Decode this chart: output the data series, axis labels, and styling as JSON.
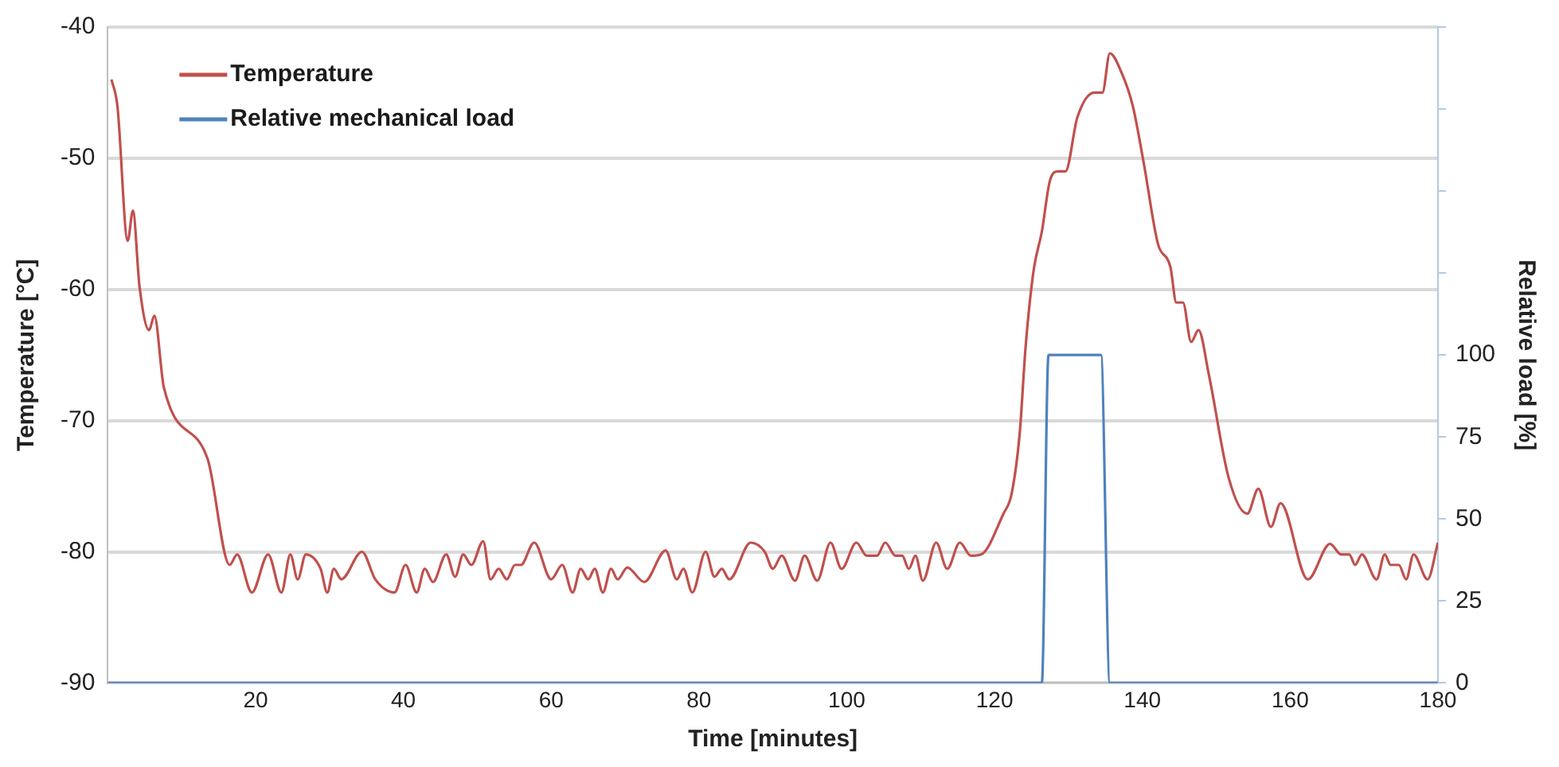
{
  "chart_data": {
    "type": "line",
    "xlabel": "Time [minutes]",
    "ylabel": "Temperature [°C]",
    "y2label": "Relative load [%]",
    "xlim": [
      0,
      180
    ],
    "xticks": [
      20,
      40,
      60,
      80,
      100,
      120,
      140,
      160,
      180
    ],
    "ylim": [
      -90,
      -40
    ],
    "yticks": [
      -90,
      -80,
      -70,
      -60,
      -50,
      -40
    ],
    "y2lim": [
      0,
      200
    ],
    "y2ticks": [
      0,
      25,
      50,
      75,
      100,
      {
        "value": 125,
        "label": null
      },
      {
        "value": 150,
        "label": null
      },
      {
        "value": 175,
        "label": null
      },
      {
        "value": 200,
        "label": null
      }
    ],
    "grid": "y",
    "legend": "top left",
    "line_style": "solid",
    "marker": "none",
    "series": [
      {
        "name": "Temperature",
        "color": "#c0504d",
        "x": [
          0.5,
          1.3,
          2.7,
          3.4,
          4.3,
          5.6,
          6.3,
          7.6,
          13.5,
          16.5,
          17.5,
          19.5,
          21.7,
          23.5,
          24.7,
          25.7,
          26.8,
          28.8,
          29.7,
          30.6,
          31.6,
          34.4,
          36.2,
          38.8,
          40.3,
          41.8,
          42.9,
          44,
          45.8,
          47,
          48.1,
          49.2,
          50.8,
          51.8,
          52.9,
          54,
          55.1,
          55.9,
          57.7,
          60,
          61.5,
          62.9,
          64,
          65,
          65.9,
          67,
          68.1,
          69,
          70.3,
          72.6,
          75.5,
          77,
          77.9,
          79.1,
          80.9,
          82.1,
          83.1,
          84.1,
          87,
          88.9,
          90,
          91.2,
          93,
          94.3,
          96,
          97.8,
          99.3,
          101.3,
          102.7,
          104.1,
          105.2,
          106.6,
          107.5,
          108.4,
          109.3,
          110.3,
          112.1,
          113.6,
          115.3,
          116.8,
          118.2,
          121.2,
          122.3,
          123.4,
          124.2,
          125.3,
          126.4,
          127.5,
          128.6,
          129.6,
          131.2,
          133.5,
          134.6,
          135.6,
          137.2,
          138.7,
          140.2,
          142.1,
          143.8,
          144.6,
          145.5,
          146.6,
          147.6,
          149,
          151.7,
          154.2,
          155.7,
          157.4,
          158.7,
          162.4,
          165.4,
          166.9,
          168,
          168.8,
          169.7,
          171.7,
          172.8,
          173.6,
          174.7,
          175.7,
          176.7,
          178.6,
          180
        ],
        "values": [
          -44,
          -46,
          -56.3,
          -54,
          -59.8,
          -63.1,
          -62,
          -67.5,
          -72.9,
          -81,
          -80.2,
          -83.1,
          -80.2,
          -83.1,
          -80.2,
          -82.1,
          -80.2,
          -81.3,
          -83.1,
          -81.3,
          -82.1,
          -80,
          -82.1,
          -83.1,
          -81,
          -83.1,
          -81.3,
          -82.3,
          -80.2,
          -81.9,
          -80.2,
          -81,
          -79.2,
          -82.1,
          -81.3,
          -82.1,
          -81,
          -81,
          -79.3,
          -82.1,
          -81,
          -83.1,
          -81.3,
          -82.1,
          -81.3,
          -83.1,
          -81.3,
          -82.1,
          -81.2,
          -82.3,
          -79.9,
          -82.1,
          -81.3,
          -83.1,
          -80,
          -81.9,
          -81.3,
          -82.1,
          -79.3,
          -80,
          -81.3,
          -80.3,
          -82.2,
          -80.3,
          -82.2,
          -79.3,
          -81.3,
          -79.3,
          -80.3,
          -80.3,
          -79.3,
          -80.3,
          -80.3,
          -81.3,
          -80.3,
          -82.2,
          -79.3,
          -81.3,
          -79.3,
          -80.3,
          -80.2,
          -77.1,
          -75.6,
          -71,
          -64.4,
          -58.5,
          -55.6,
          -51.7,
          -51,
          -51,
          -46.9,
          -45,
          -45,
          -42,
          -43.5,
          -46,
          -50.4,
          -56.5,
          -58.3,
          -61,
          -61,
          -64,
          -63.1,
          -66.5,
          -74.4,
          -77.1,
          -75.2,
          -78.1,
          -76.3,
          -82.1,
          -79.4,
          -80.2,
          -80.2,
          -81,
          -80.2,
          -82.1,
          -80.2,
          -81,
          -81,
          -82.1,
          -80.2,
          -82.1,
          -79.3
        ]
      },
      {
        "name": "Relative mechanical load",
        "color": "#4f81bd",
        "axis": "y2",
        "x": [
          0,
          126.4,
          127.3,
          134.4,
          135.6,
          180
        ],
        "values": [
          0,
          0,
          100,
          100,
          0,
          0
        ]
      }
    ]
  }
}
